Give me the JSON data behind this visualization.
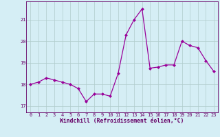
{
  "x": [
    0,
    1,
    2,
    3,
    4,
    5,
    6,
    7,
    8,
    9,
    10,
    11,
    12,
    13,
    14,
    15,
    16,
    17,
    18,
    19,
    20,
    21,
    22,
    23
  ],
  "y": [
    18.0,
    18.1,
    18.3,
    18.2,
    18.1,
    18.0,
    17.8,
    17.2,
    17.55,
    17.55,
    17.45,
    18.5,
    20.3,
    21.0,
    21.5,
    18.75,
    18.8,
    18.9,
    18.9,
    20.0,
    19.8,
    19.7,
    19.1,
    18.6
  ],
  "line_color": "#990099",
  "marker": "D",
  "marker_size": 2.5,
  "bg_color": "#d5eef5",
  "grid_color": "#b0cccc",
  "xlabel": "Windchill (Refroidissement éolien,°C)",
  "xlabel_color": "#660066",
  "tick_color": "#660066",
  "ylim": [
    16.7,
    21.85
  ],
  "xlim": [
    -0.5,
    23.5
  ],
  "yticks": [
    17,
    18,
    19,
    20,
    21
  ],
  "xticks": [
    0,
    1,
    2,
    3,
    4,
    5,
    6,
    7,
    8,
    9,
    10,
    11,
    12,
    13,
    14,
    15,
    16,
    17,
    18,
    19,
    20,
    21,
    22,
    23
  ]
}
